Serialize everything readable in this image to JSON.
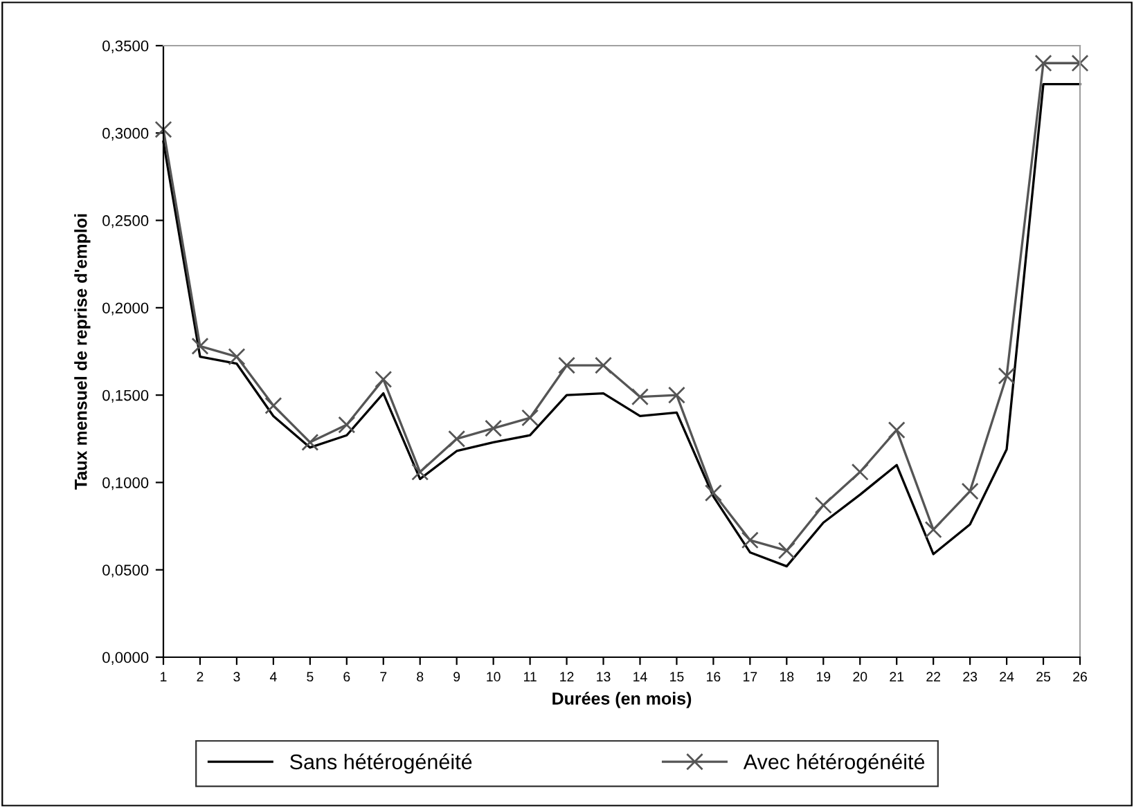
{
  "chart_data": {
    "type": "line",
    "xlabel": "Durées (en mois)",
    "ylabel": "Taux mensuel de reprise d'emploi",
    "categories": [
      "1",
      "2",
      "3",
      "4",
      "5",
      "6",
      "7",
      "8",
      "9",
      "10",
      "11",
      "12",
      "13",
      "14",
      "15",
      "16",
      "17",
      "18",
      "19",
      "20",
      "21",
      "22",
      "23",
      "24",
      "25",
      "26"
    ],
    "series": [
      {
        "name": "Sans hétérogénéité",
        "color": "#000000",
        "marker": "none",
        "values": [
          0.295,
          0.172,
          0.168,
          0.138,
          0.12,
          0.127,
          0.151,
          0.102,
          0.118,
          0.123,
          0.127,
          0.15,
          0.151,
          0.138,
          0.14,
          0.092,
          0.06,
          0.052,
          0.077,
          0.093,
          0.11,
          0.059,
          0.076,
          0.119,
          0.328,
          0.328
        ]
      },
      {
        "name": "Avec hétérogénéité",
        "color": "#555555",
        "marker": "cross",
        "values": [
          0.302,
          0.178,
          0.172,
          0.144,
          0.123,
          0.133,
          0.159,
          0.106,
          0.125,
          0.131,
          0.137,
          0.167,
          0.167,
          0.149,
          0.15,
          0.094,
          0.067,
          0.061,
          0.087,
          0.106,
          0.13,
          0.073,
          0.095,
          0.161,
          0.34,
          0.34
        ]
      }
    ],
    "ylim": [
      0,
      0.35
    ],
    "yticks": [
      {
        "value": 0,
        "label": "0,0000"
      },
      {
        "value": 0.05,
        "label": "0,0500"
      },
      {
        "value": 0.1,
        "label": "0,1000"
      },
      {
        "value": 0.15,
        "label": "0,1500"
      },
      {
        "value": 0.2,
        "label": "0,2000"
      },
      {
        "value": 0.25,
        "label": "0,2500"
      },
      {
        "value": 0.3,
        "label": "0,3000"
      },
      {
        "value": 0.35,
        "label": "0,3500"
      }
    ],
    "grid": false,
    "legend": "bottom",
    "line_style": "solid"
  }
}
